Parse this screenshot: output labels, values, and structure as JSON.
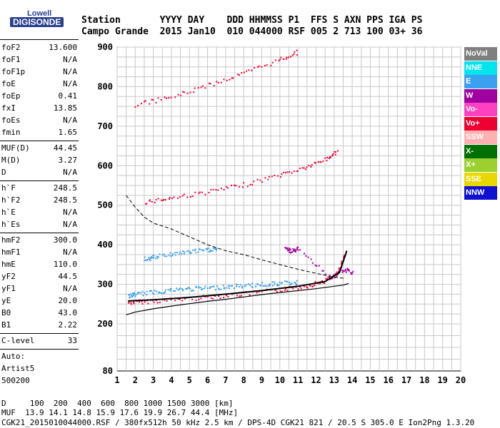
{
  "logo": {
    "top": "Lowell",
    "bottom": "DIGISONDE"
  },
  "header": {
    "row1": "Station       YYYY DAY    DDD HHMMSS P1  FFS S AXN PPS IGA PS",
    "row2": "Campo Grande  2015 Jan10  010 044000 RSF 005 2 713 100 03+ 36"
  },
  "parameters": {
    "group1": [
      {
        "label": "foF2",
        "value": "13.600"
      },
      {
        "label": "foF1",
        "value": "N/A"
      },
      {
        "label": "foF1p",
        "value": "N/A"
      },
      {
        "label": "foE",
        "value": "N/A"
      },
      {
        "label": "foEp",
        "value": "0.41"
      },
      {
        "label": "fxI",
        "value": "13.85"
      },
      {
        "label": "foEs",
        "value": "N/A"
      },
      {
        "label": "fmin",
        "value": "1.65"
      }
    ],
    "group2": [
      {
        "label": "MUF(D)",
        "value": "44.45"
      },
      {
        "label": "M(D)",
        "value": "3.27"
      },
      {
        "label": "D",
        "value": "N/A"
      }
    ],
    "group3": [
      {
        "label": "h`F",
        "value": "248.5"
      },
      {
        "label": "h`F2",
        "value": "248.5"
      },
      {
        "label": "h`E",
        "value": "N/A"
      },
      {
        "label": "h`Es",
        "value": "N/A"
      }
    ],
    "group4": [
      {
        "label": "hmF2",
        "value": "300.0"
      },
      {
        "label": "hmF1",
        "value": "N/A"
      },
      {
        "label": "hmE",
        "value": "110.0"
      },
      {
        "label": "yF2",
        "value": "44.5"
      },
      {
        "label": "yF1",
        "value": "N/A"
      },
      {
        "label": "yE",
        "value": "20.0"
      },
      {
        "label": "B0",
        "value": "43.0"
      },
      {
        "label": "B1",
        "value": "2.22"
      }
    ],
    "group5": [
      {
        "label": "C-level",
        "value": "33"
      }
    ],
    "auto": [
      "Auto:",
      "Artist5",
      "500200"
    ]
  },
  "legend": [
    {
      "label": "NoVal",
      "color": "#7f7f7f"
    },
    {
      "label": "NNE",
      "color": "#00e5ee"
    },
    {
      "label": "E",
      "color": "#3aa0f0"
    },
    {
      "label": "W",
      "color": "#a000a0"
    },
    {
      "label": "Vo-",
      "color": "#ff40c0"
    },
    {
      "label": "Vo+",
      "color": "#ee0030"
    },
    {
      "label": "SSW",
      "color": "#ffb0b0"
    },
    {
      "label": "X-",
      "color": "#007000"
    },
    {
      "label": "X+",
      "color": "#9ad030"
    },
    {
      "label": "SSE",
      "color": "#e8d800"
    },
    {
      "label": "NNW",
      "color": "#1010d0"
    }
  ],
  "footer": {
    "row1": "D     100  200  400  600  800 1000 1500 3000 [km]",
    "row2": "MUF  13.9 14.1 14.8 15.9 17.6 19.9 26.7 44.4 [MHz]",
    "row3": "CGK21_2015010044000.RSF / 380fx512h 50 kHz 2.5 km / DPS-4D CGK21 821 / 20.5 S 305.0 E Ion2Png 1.3.20"
  },
  "chart_data": {
    "type": "scatter",
    "title": "",
    "xlabel": "",
    "ylabel": "",
    "xlim": [
      1,
      20
    ],
    "ylim": [
      80,
      900
    ],
    "x_ticks": [
      1,
      2,
      3,
      4,
      5,
      6,
      7,
      8,
      9,
      10,
      11,
      12,
      13,
      14,
      15,
      16,
      17,
      18,
      19,
      20
    ],
    "y_ticks": [
      80,
      200,
      300,
      400,
      500,
      600,
      700,
      800,
      900
    ],
    "grid": true,
    "series": [
      {
        "name": "Vo+",
        "color": "#ee0030",
        "x": [
          1.6,
          2.5,
          4,
          6,
          8,
          10,
          11.5,
          12.5,
          13.2,
          13.6
        ],
        "y": [
          255,
          258,
          262,
          269,
          277,
          287,
          298,
          311,
          330,
          380
        ]
      },
      {
        "name": "Vo+",
        "color": "#ee0030",
        "x": [
          2.5,
          4,
          6,
          8,
          10,
          11.5,
          12.5,
          13.2
        ],
        "y": [
          510,
          520,
          535,
          553,
          578,
          598,
          618,
          638
        ]
      },
      {
        "name": "Vo+",
        "color": "#ee0030",
        "x": [
          2,
          4,
          6,
          8,
          10,
          11
        ],
        "y": [
          755,
          775,
          805,
          835,
          870,
          890
        ]
      },
      {
        "name": "E",
        "color": "#3aa0f0",
        "x": [
          1.6,
          2,
          3,
          4,
          5,
          6,
          7,
          8,
          9,
          10,
          11
        ],
        "y": [
          272,
          276,
          282,
          287,
          290,
          292,
          295,
          298,
          301,
          304,
          306
        ]
      },
      {
        "name": "E",
        "color": "#3aa0f0",
        "x": [
          2.5,
          3,
          4,
          5,
          6,
          6.5
        ],
        "y": [
          365,
          370,
          378,
          384,
          388,
          392
        ]
      },
      {
        "name": "W",
        "color": "#a000a0",
        "x": [
          10.3,
          10.6,
          11,
          12.8,
          13.6,
          14
        ],
        "y": [
          390,
          385,
          392,
          318,
          338,
          330
        ]
      }
    ],
    "profile_solid": {
      "x": [
        1.5,
        2,
        3,
        4,
        5,
        6,
        7,
        8,
        9,
        10,
        11,
        12,
        13,
        13.5,
        13.8
      ],
      "y": [
        223,
        230,
        238,
        245,
        251,
        257,
        262,
        268,
        274,
        279,
        284,
        289,
        295,
        298,
        302
      ]
    },
    "profile_dashed": {
      "x": [
        1.5,
        2,
        2.5,
        3,
        4,
        5,
        6,
        7,
        8,
        9,
        10,
        11,
        12,
        13,
        13.6
      ],
      "y": [
        525,
        495,
        470,
        455,
        440,
        420,
        400,
        385,
        375,
        362,
        350,
        338,
        328,
        318,
        315
      ]
    },
    "profile_black": {
      "x": [
        1.6,
        3,
        5,
        7,
        9,
        11,
        12.5,
        13.3,
        13.7
      ],
      "y": [
        258,
        261,
        267,
        275,
        284,
        295,
        307,
        330,
        385
      ]
    }
  }
}
